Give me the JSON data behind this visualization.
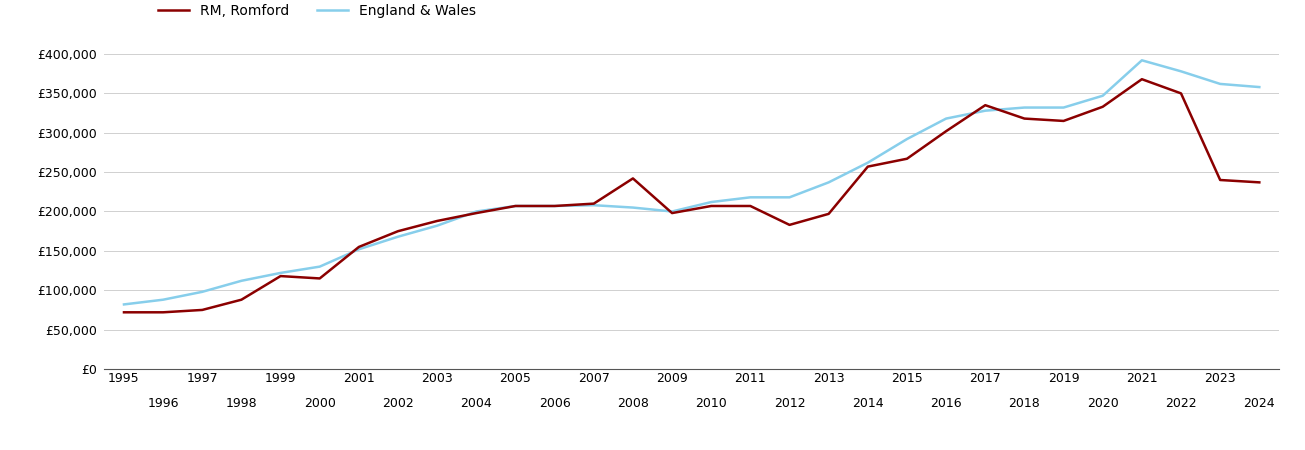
{
  "romford_years": [
    1995,
    1996,
    1997,
    1998,
    1999,
    2000,
    2001,
    2002,
    2003,
    2004,
    2005,
    2006,
    2007,
    2008,
    2009,
    2010,
    2011,
    2012,
    2013,
    2014,
    2015,
    2016,
    2017,
    2018,
    2019,
    2020,
    2021,
    2022,
    2023,
    2024
  ],
  "romford_values": [
    72000,
    72000,
    75000,
    88000,
    118000,
    115000,
    155000,
    175000,
    188000,
    198000,
    207000,
    207000,
    210000,
    242000,
    198000,
    207000,
    207000,
    183000,
    197000,
    257000,
    267000,
    302000,
    335000,
    318000,
    315000,
    333000,
    368000,
    350000,
    240000,
    237000
  ],
  "ew_years": [
    1995,
    1996,
    1997,
    1998,
    1999,
    2000,
    2001,
    2002,
    2003,
    2004,
    2005,
    2006,
    2007,
    2008,
    2009,
    2010,
    2011,
    2012,
    2013,
    2014,
    2015,
    2016,
    2017,
    2018,
    2019,
    2020,
    2021,
    2022,
    2023,
    2024
  ],
  "ew_values": [
    82000,
    88000,
    98000,
    112000,
    122000,
    130000,
    152000,
    168000,
    182000,
    200000,
    207000,
    207000,
    208000,
    205000,
    200000,
    212000,
    218000,
    218000,
    237000,
    262000,
    292000,
    318000,
    328000,
    332000,
    332000,
    347000,
    392000,
    378000,
    362000,
    358000
  ],
  "romford_color": "#8B0000",
  "ew_color": "#87CEEB",
  "romford_label": "RM, Romford",
  "ew_label": "England & Wales",
  "ylim": [
    0,
    400000
  ],
  "yticks": [
    0,
    50000,
    100000,
    150000,
    200000,
    250000,
    300000,
    350000,
    400000
  ],
  "xlim": [
    1994.5,
    2024.5
  ],
  "line_width": 1.8,
  "background_color": "#ffffff",
  "grid_color": "#d0d0d0"
}
